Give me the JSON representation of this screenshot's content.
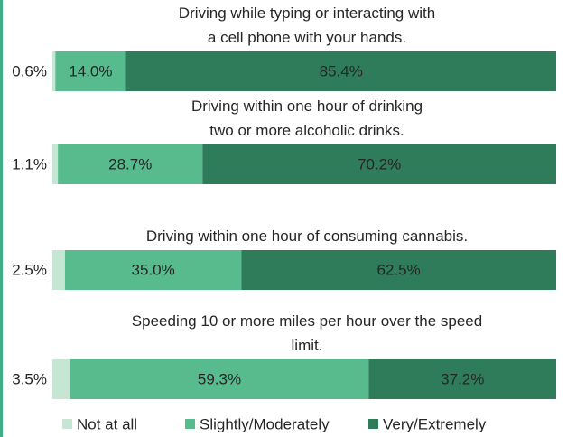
{
  "chart_data": {
    "type": "stacked_barh",
    "categories": [
      "Driving while typing or interacting with\na cell phone with your hands.",
      "Driving within one hour of drinking\ntwo or more alcoholic drinks.",
      "Driving within one hour of consuming cannabis.",
      "Speeding 10 or more miles per hour over the speed\nlimit."
    ],
    "xlim": [
      0,
      100
    ],
    "legend": "bottom",
    "series": [
      {
        "name": "Not at all",
        "color": "#c4e6d3",
        "values": [
          0.6,
          1.1,
          2.5,
          3.5
        ],
        "value_labels": [
          "0.6%",
          "1.1%",
          "2.5%",
          "3.5%"
        ]
      },
      {
        "name": "Slightly/Moderately",
        "color": "#57bb8d",
        "values": [
          14.0,
          28.7,
          35.0,
          59.3
        ],
        "value_labels": [
          "14.0%",
          "28.7%",
          "35.0%",
          "59.3%"
        ]
      },
      {
        "name": "Very/Extremely",
        "color": "#2f7c5a",
        "values": [
          85.4,
          70.2,
          62.5,
          37.2
        ],
        "value_labels": [
          "85.4%",
          "70.2%",
          "62.5%",
          "37.2%"
        ]
      }
    ]
  }
}
